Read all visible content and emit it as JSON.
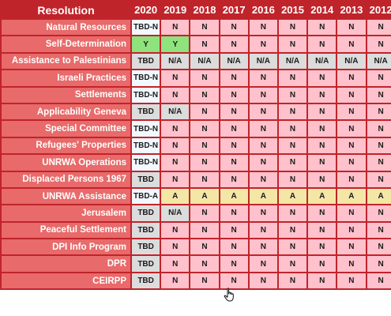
{
  "header": {
    "resolution_label": "Resolution",
    "years": [
      "2020",
      "2019",
      "2018",
      "2017",
      "2016",
      "2015",
      "2014",
      "2013",
      "2012"
    ]
  },
  "rows": [
    {
      "name": "Natural Resources",
      "values": [
        "TBD-N",
        "N",
        "N",
        "N",
        "N",
        "N",
        "N",
        "N",
        "N"
      ]
    },
    {
      "name": "Self-Determination",
      "values": [
        "Y",
        "Y",
        "N",
        "N",
        "N",
        "N",
        "N",
        "N",
        "N"
      ]
    },
    {
      "name": "Assistance to Palestinians",
      "values": [
        "TBD",
        "N/A",
        "N/A",
        "N/A",
        "N/A",
        "N/A",
        "N/A",
        "N/A",
        "N/A"
      ]
    },
    {
      "name": "Israeli Practices",
      "values": [
        "TBD-N",
        "N",
        "N",
        "N",
        "N",
        "N",
        "N",
        "N",
        "N"
      ]
    },
    {
      "name": "Settlements",
      "values": [
        "TBD-N",
        "N",
        "N",
        "N",
        "N",
        "N",
        "N",
        "N",
        "N"
      ]
    },
    {
      "name": "Applicability Geneva",
      "values": [
        "TBD",
        "N/A",
        "N",
        "N",
        "N",
        "N",
        "N",
        "N",
        "N"
      ]
    },
    {
      "name": "Special Committee",
      "values": [
        "TBD-N",
        "N",
        "N",
        "N",
        "N",
        "N",
        "N",
        "N",
        "N"
      ]
    },
    {
      "name": "Refugees' Properties",
      "values": [
        "TBD-N",
        "N",
        "N",
        "N",
        "N",
        "N",
        "N",
        "N",
        "N"
      ]
    },
    {
      "name": "UNRWA Operations",
      "values": [
        "TBD-N",
        "N",
        "N",
        "N",
        "N",
        "N",
        "N",
        "N",
        "N"
      ]
    },
    {
      "name": "Displaced Persons 1967",
      "values": [
        "TBD",
        "N",
        "N",
        "N",
        "N",
        "N",
        "N",
        "N",
        "N"
      ]
    },
    {
      "name": "UNRWA Assistance",
      "values": [
        "TBD-A",
        "A",
        "A",
        "A",
        "A",
        "A",
        "A",
        "A",
        "A"
      ]
    },
    {
      "name": "Jerusalem",
      "values": [
        "TBD",
        "N/A",
        "N",
        "N",
        "N",
        "N",
        "N",
        "N",
        "N"
      ]
    },
    {
      "name": "Peaceful Settlement",
      "values": [
        "TBD",
        "N",
        "N",
        "N",
        "N",
        "N",
        "N",
        "N",
        "N"
      ]
    },
    {
      "name": "DPI Info Program",
      "values": [
        "TBD",
        "N",
        "N",
        "N",
        "N",
        "N",
        "N",
        "N",
        "N"
      ]
    },
    {
      "name": "DPR",
      "values": [
        "TBD",
        "N",
        "N",
        "N",
        "N",
        "N",
        "N",
        "N",
        "N"
      ]
    },
    {
      "name": "CEIRPP",
      "values": [
        "TBD",
        "N",
        "N",
        "N",
        "N",
        "N",
        "N",
        "N",
        "N"
      ]
    }
  ],
  "colors": {
    "header_bg": "#c0242b",
    "resolution_cell_bg": "#e86a6a",
    "N": "#ffc1cc",
    "Y": "#8ee37d",
    "NA": "#dcdcdc",
    "A": "#f4e7a6",
    "TBD": "#dcdcdc",
    "TBD-N": "#f2f8ff",
    "TBD-A": "#f2f8ff"
  },
  "cursor": {
    "icon": "hand-pointer-icon"
  }
}
